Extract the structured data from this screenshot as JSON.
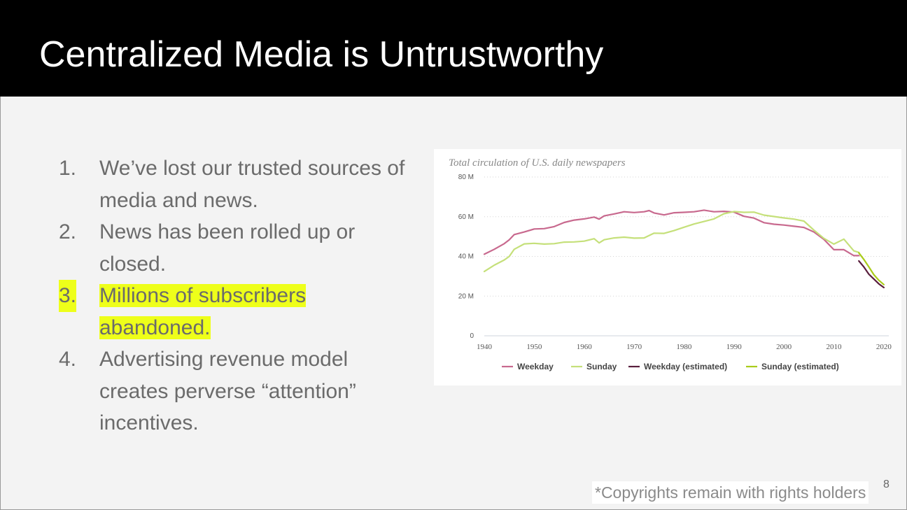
{
  "slide": {
    "title": "Centralized Media is Untrustworthy",
    "page_number": "8",
    "footnote": "*Copyrights remain with rights holders",
    "highlight_color": "#eeff1a"
  },
  "bullets": [
    {
      "num": "1.",
      "lines": [
        "We’ve lost our trusted sources of",
        "media and news."
      ],
      "highlighted": false
    },
    {
      "num": "2.",
      "lines": [
        "News has been rolled up or",
        "closed."
      ],
      "highlighted": false
    },
    {
      "num": "3.",
      "lines": [
        "Millions of subscribers",
        "abandoned."
      ],
      "highlighted": true
    },
    {
      "num": "4.",
      "lines": [
        "Advertising revenue model",
        "creates perverse “attention”",
        "incentives."
      ],
      "highlighted": false
    }
  ],
  "chart_data": {
    "type": "line",
    "title": "Total circulation of U.S. daily newspapers",
    "xlabel": "",
    "ylabel": "",
    "xlim": [
      1940,
      2021
    ],
    "ylim": [
      0,
      80
    ],
    "x_ticks": [
      1940,
      1950,
      1960,
      1970,
      1980,
      1990,
      2000,
      2010,
      2020
    ],
    "y_ticks": [
      {
        "value": 0,
        "label": "0"
      },
      {
        "value": 20,
        "label": "20 M"
      },
      {
        "value": 40,
        "label": "40 M"
      },
      {
        "value": 60,
        "label": "60 M"
      },
      {
        "value": 80,
        "label": "80 M"
      }
    ],
    "grid": true,
    "legend_position": "bottom",
    "series": [
      {
        "name": "Weekday",
        "color": "#c8698e",
        "x": [
          1940,
          1942,
          1944,
          1945,
          1946,
          1948,
          1950,
          1952,
          1954,
          1956,
          1958,
          1960,
          1962,
          1963,
          1964,
          1966,
          1968,
          1970,
          1972,
          1973,
          1974,
          1976,
          1978,
          1980,
          1982,
          1984,
          1986,
          1988,
          1990,
          1992,
          1994,
          1996,
          1998,
          2000,
          2002,
          2004,
          2006,
          2008,
          2010,
          2012,
          2014,
          2015
        ],
        "values": [
          41.1,
          43.6,
          46.4,
          48.4,
          51.0,
          52.3,
          53.8,
          54.0,
          55.0,
          57.1,
          58.3,
          58.9,
          59.8,
          58.8,
          60.4,
          61.4,
          62.5,
          62.1,
          62.5,
          63.1,
          61.9,
          60.9,
          62.0,
          62.2,
          62.5,
          63.3,
          62.5,
          62.7,
          62.3,
          60.2,
          59.3,
          57.0,
          56.2,
          55.8,
          55.2,
          54.6,
          52.3,
          48.6,
          43.4,
          43.4,
          40.4,
          40.4
        ]
      },
      {
        "name": "Sunday",
        "color": "#c5e07a",
        "x": [
          1940,
          1942,
          1944,
          1945,
          1946,
          1948,
          1950,
          1952,
          1954,
          1956,
          1958,
          1960,
          1962,
          1963,
          1964,
          1966,
          1968,
          1970,
          1972,
          1974,
          1976,
          1978,
          1980,
          1982,
          1984,
          1986,
          1988,
          1990,
          1992,
          1994,
          1996,
          1998,
          2000,
          2002,
          2004,
          2006,
          2008,
          2010,
          2012,
          2014,
          2015
        ],
        "values": [
          32.4,
          35.6,
          38.2,
          40.0,
          43.6,
          46.3,
          46.6,
          46.2,
          46.4,
          47.2,
          47.3,
          47.7,
          48.9,
          46.8,
          48.4,
          49.3,
          49.7,
          49.2,
          49.3,
          51.7,
          51.6,
          53.0,
          54.7,
          56.3,
          57.6,
          58.9,
          61.5,
          62.6,
          62.2,
          62.3,
          60.8,
          60.1,
          59.4,
          58.8,
          57.8,
          53.2,
          49.1,
          46.2,
          48.7,
          42.8,
          42.0
        ]
      },
      {
        "name": "Weekday (estimated)",
        "color": "#5a1f3d",
        "x": [
          2015,
          2016,
          2017,
          2018,
          2019,
          2020
        ],
        "values": [
          37.7,
          34.7,
          31.0,
          28.6,
          26.2,
          24.3
        ]
      },
      {
        "name": "Sunday (estimated)",
        "color": "#aacc1a",
        "x": [
          2015,
          2016,
          2017,
          2018,
          2019,
          2020
        ],
        "values": [
          41.8,
          38.5,
          34.7,
          30.8,
          28.0,
          25.8
        ]
      }
    ]
  }
}
